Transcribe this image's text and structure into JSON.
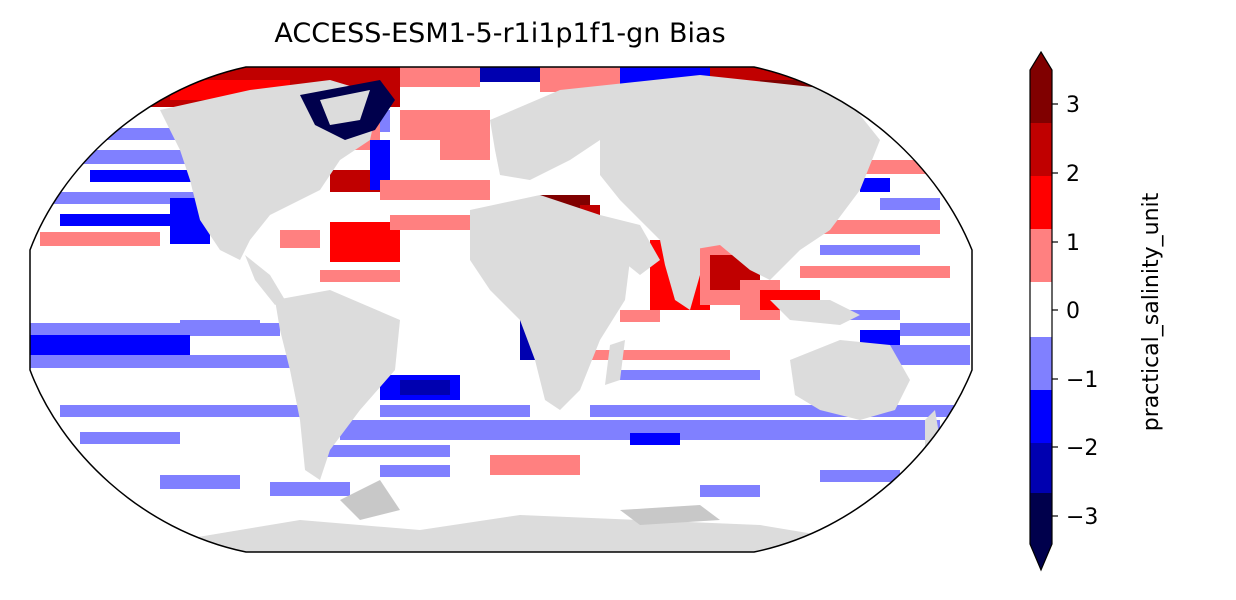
{
  "title": "ACCESS-ESM1-5-r1i1p1f1-gn Bias",
  "colorbar": {
    "label": "practical_salinity_unit",
    "ticks": [
      "3",
      "2",
      "1",
      "0",
      "−1",
      "−2",
      "−3"
    ],
    "levels": [
      -3.5,
      -3,
      -2.5,
      -2,
      -1.5,
      -1,
      -0.5,
      0.5,
      1,
      1.5,
      2,
      2.5,
      3,
      3.5
    ],
    "extend": "both",
    "colors": {
      "below": "#00004c",
      "b_-3_-2.5": "#000080",
      "b_-2.5_-2": "#0000b0",
      "b_-2_-1.5": "#0000ff",
      "b_-1.5_-1": "#8080ff",
      "b_-1_-0.5": "#8080ff",
      "b_-0.5_0.5": "#ffffff",
      "b_0.5_1": "#ff8080",
      "b_1_1.5": "#ff0000",
      "b_1.5_2": "#ff0000",
      "b_2_2.5": "#c00000",
      "b_2.5_3": "#a00000",
      "above": "#800000"
    }
  },
  "map": {
    "projection": "Robinson",
    "land_color": "#dcdcdc",
    "ice_shelf_color": "#c8c8c8",
    "ocean_default": "#ffffff",
    "positive_bias_colors": [
      "#ff8080",
      "#ff0000",
      "#c00000",
      "#800000"
    ],
    "negative_bias_colors": [
      "#8080ff",
      "#0000ff",
      "#0000b0",
      "#00004c"
    ]
  }
}
